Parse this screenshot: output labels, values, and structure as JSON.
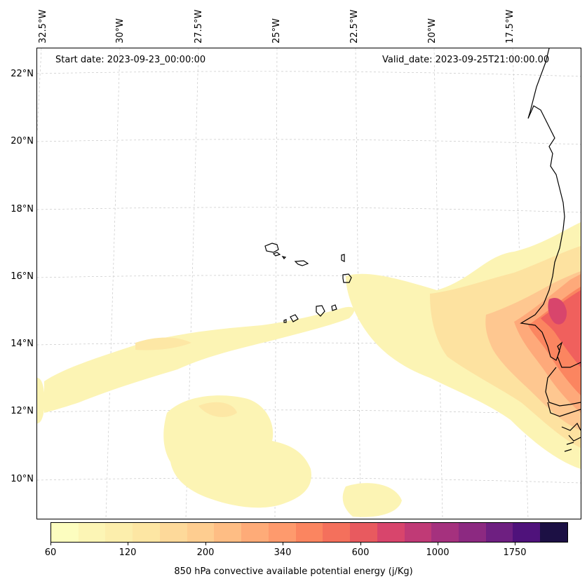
{
  "map": {
    "start_date": "Start date: 2023-09-23_00:00:00",
    "valid_date": "Valid_date: 2023-09-25T21:00:00.00",
    "lon_labels": [
      "32.5°W",
      "30°W",
      "27.5°W",
      "25°W",
      "22.5°W",
      "20°W",
      "17.5°W"
    ],
    "lat_labels": [
      "22°N",
      "20°N",
      "18°N",
      "16°N",
      "14°N",
      "12°N",
      "10°N"
    ],
    "gridlines": "dashed",
    "field_colors": [
      "#fcfdbf",
      "#fceeb0",
      "#fde2a0",
      "#fec790",
      "#fea97a",
      "#fb8560",
      "#f0605d",
      "#d8456c",
      "#b5367a",
      "#8c2981",
      "#5f187f",
      "#1c1044"
    ]
  },
  "colorbar": {
    "label": "850 hPa convective available potential energy (j/Kg)",
    "ticks": [
      "60",
      "120",
      "200",
      "340",
      "600",
      "1000",
      "1750"
    ],
    "colors": [
      "#fcfdbf",
      "#fcf5b5",
      "#fceeac",
      "#fde6a3",
      "#fdd99a",
      "#fecd90",
      "#febd84",
      "#feab78",
      "#fe9a6d",
      "#fb8560",
      "#f4705c",
      "#e85a5f",
      "#d8456c",
      "#c03a76",
      "#a5317e",
      "#8c2981",
      "#6e1f81",
      "#4f127b",
      "#1c1044"
    ]
  }
}
